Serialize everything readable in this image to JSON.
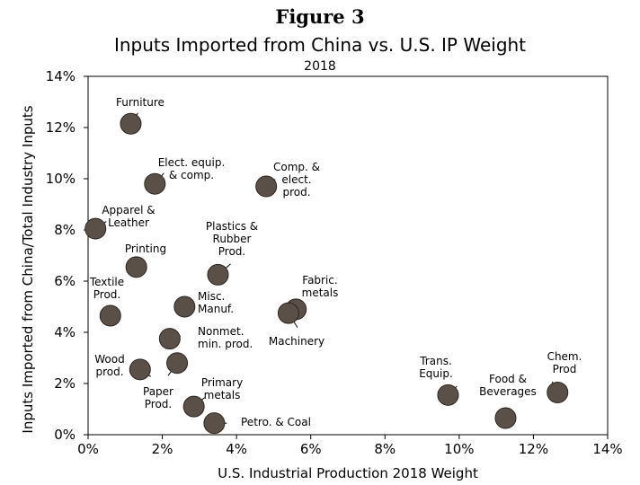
{
  "figure_label": "Figure 3",
  "chart_data": {
    "type": "scatter",
    "title": "Inputs Imported from China vs. U.S. IP Weight",
    "subtitle": "2018",
    "xlabel": "U.S. Industrial Production 2018 Weight",
    "ylabel": "Inputs Imported from China/Total Industry Inputs",
    "xlim": [
      0,
      14
    ],
    "ylim": [
      0,
      14
    ],
    "xticks": [
      0,
      2,
      4,
      6,
      8,
      10,
      12,
      14
    ],
    "yticks": [
      0,
      2,
      4,
      6,
      8,
      10,
      12,
      14
    ],
    "xtick_labels": [
      "0%",
      "2%",
      "4%",
      "6%",
      "8%",
      "10%",
      "12%",
      "14%"
    ],
    "ytick_labels": [
      "0%",
      "2%",
      "4%",
      "6%",
      "8%",
      "10%",
      "12%",
      "14%"
    ],
    "grid": false,
    "marker_color": "#5b5048",
    "points": [
      {
        "label": [
          "Furniture"
        ],
        "x": 1.15,
        "y": 12.15
      },
      {
        "label": [
          "Elect. equip.",
          "& comp."
        ],
        "x": 1.8,
        "y": 9.8
      },
      {
        "label": [
          "Comp. &",
          "elect.",
          "prod."
        ],
        "x": 4.8,
        "y": 9.7
      },
      {
        "label": [
          "Apparel &",
          "Leather"
        ],
        "x": 0.2,
        "y": 8.05
      },
      {
        "label": [
          "Printing"
        ],
        "x": 1.3,
        "y": 6.55
      },
      {
        "label": [
          "Plastics &",
          "Rubber",
          "Prod."
        ],
        "x": 3.5,
        "y": 6.25
      },
      {
        "label": [
          "Textile",
          "Prod."
        ],
        "x": 0.6,
        "y": 4.65
      },
      {
        "label": [
          "Misc.",
          "Manuf."
        ],
        "x": 2.6,
        "y": 5.0
      },
      {
        "label": [
          "Fabric.",
          "metals"
        ],
        "x": 5.6,
        "y": 4.9
      },
      {
        "label": [
          "Machinery"
        ],
        "x": 5.4,
        "y": 4.75
      },
      {
        "label": [
          "Nonmet.",
          "min. prod."
        ],
        "x": 2.2,
        "y": 3.75
      },
      {
        "label": [
          "Wood",
          "prod."
        ],
        "x": 1.4,
        "y": 2.55
      },
      {
        "label": [
          "Paper",
          "Prod."
        ],
        "x": 2.4,
        "y": 2.8
      },
      {
        "label": [
          "Primary",
          "metals"
        ],
        "x": 2.85,
        "y": 1.1
      },
      {
        "label": [
          "Petro. & Coal"
        ],
        "x": 3.4,
        "y": 0.45
      },
      {
        "label": [
          "Trans.",
          "Equip."
        ],
        "x": 9.7,
        "y": 1.55
      },
      {
        "label": [
          "Food &",
          "Beverages"
        ],
        "x": 11.25,
        "y": 0.65
      },
      {
        "label": [
          "Chem.",
          "Prod"
        ],
        "x": 12.65,
        "y": 1.65
      }
    ]
  }
}
